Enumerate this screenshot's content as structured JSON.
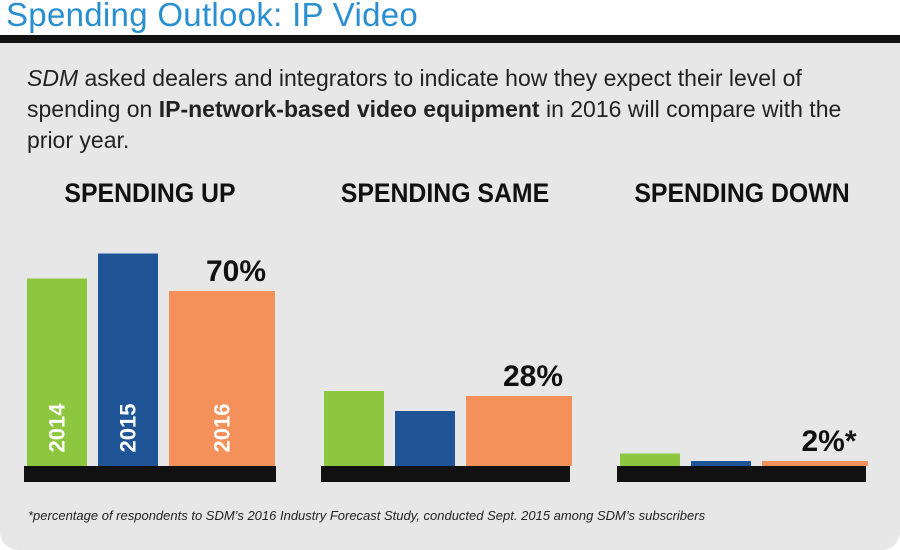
{
  "header": {
    "title": "Spending Outlook: IP Video"
  },
  "intro": {
    "brand": "SDM",
    "text_before": " asked dealers and integrators to indicate how they expect their level of spending on ",
    "bold": "IP-network-based video equipment",
    "text_after": " in 2016 will compare with the prior year."
  },
  "footnote": "*percentage of respondents to SDM’s 2016 Industry Forecast Study, conducted Sept. 2015 among SDM’s subscribers",
  "colors": {
    "2014": "#8dc63f",
    "2015": "#1f5597",
    "2016": "#f4905a",
    "title": "#2a8fd0",
    "panel": "#e7e7e8",
    "baseline": "#111111"
  },
  "chart_data": {
    "type": "bar",
    "series": [
      {
        "name": "2014",
        "color": "#8dc63f"
      },
      {
        "name": "2015",
        "color": "#1f5597"
      },
      {
        "name": "2016",
        "color": "#f4905a"
      }
    ],
    "groups": [
      {
        "label": "SPENDING UP",
        "values": [
          75,
          85,
          70
        ],
        "annotation": "70%"
      },
      {
        "label": "SPENDING SAME",
        "values": [
          30,
          22,
          28
        ],
        "annotation": "28%"
      },
      {
        "label": "SPENDING DOWN",
        "values": [
          5,
          2,
          2
        ],
        "annotation": "2%*"
      }
    ],
    "unit": "percent"
  }
}
